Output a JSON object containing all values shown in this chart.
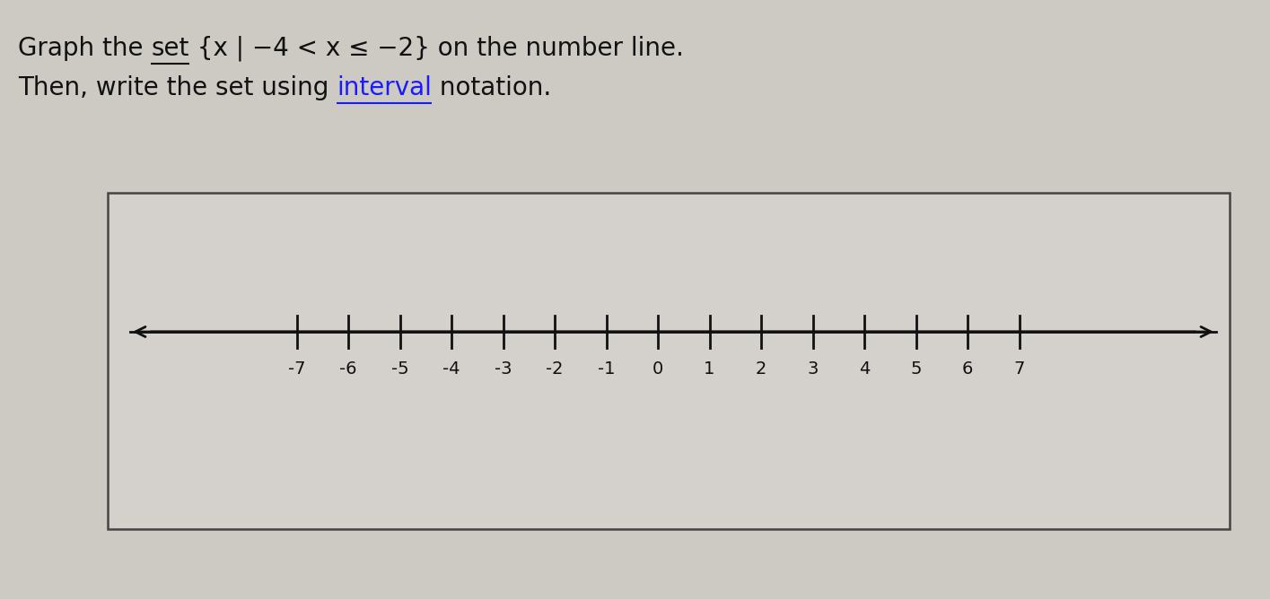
{
  "background_color": "#cdc9c3",
  "box_facecolor": "#d4d0cb",
  "box_edgecolor": "#444444",
  "text_color": "#111111",
  "interval_color": "#1a1aff",
  "line_color": "#111111",
  "tick_positions": [
    -7,
    -6,
    -5,
    -4,
    -3,
    -2,
    -1,
    0,
    1,
    2,
    3,
    4,
    5,
    6,
    7
  ],
  "tick_labels": [
    "-7",
    "-6",
    "-5",
    "-4",
    "-3",
    "-2",
    "-1",
    "0",
    "1",
    "2",
    "3",
    "4",
    "5",
    "6",
    "7"
  ],
  "title_fontsize": 20,
  "tick_fontsize": 14,
  "line1_segment1": "Graph the ",
  "line1_segment2": "set",
  "line1_segment3": " {x | −4 < x ≤ −2} on the number line.",
  "line2_segment1": "Then, write the set using ",
  "line2_segment2": "interval",
  "line2_segment3": " notation."
}
